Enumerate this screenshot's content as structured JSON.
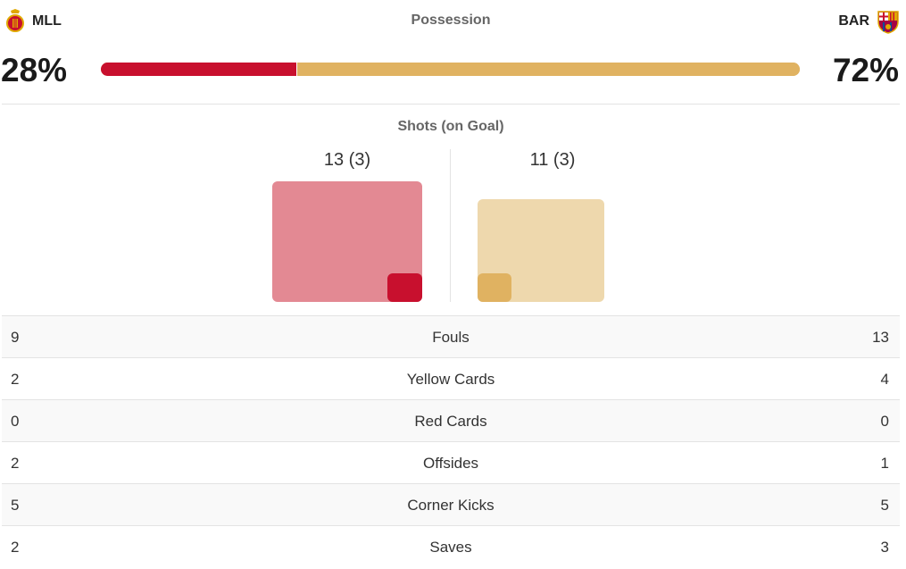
{
  "teams": {
    "home": {
      "abbr": "MLL",
      "crest_icon": "mallorca-crest-icon",
      "color": "#c8102e"
    },
    "away": {
      "abbr": "BAR",
      "crest_icon": "barcelona-crest-icon",
      "color": "#e0b261"
    }
  },
  "possession": {
    "title": "Possession",
    "home": {
      "label": "28%",
      "value": 28
    },
    "away": {
      "label": "72%",
      "value": 72
    }
  },
  "shots": {
    "title": "Shots (on Goal)",
    "home": {
      "label": "13 (3)",
      "total": 13,
      "on_goal": 3
    },
    "away": {
      "label": "11 (3)",
      "total": 11,
      "on_goal": 3
    }
  },
  "stats": [
    {
      "label": "Fouls",
      "home": "9",
      "away": "13"
    },
    {
      "label": "Yellow Cards",
      "home": "2",
      "away": "4"
    },
    {
      "label": "Red Cards",
      "home": "0",
      "away": "0"
    },
    {
      "label": "Offsides",
      "home": "2",
      "away": "1"
    },
    {
      "label": "Corner Kicks",
      "home": "5",
      "away": "5"
    },
    {
      "label": "Saves",
      "home": "2",
      "away": "3"
    }
  ]
}
